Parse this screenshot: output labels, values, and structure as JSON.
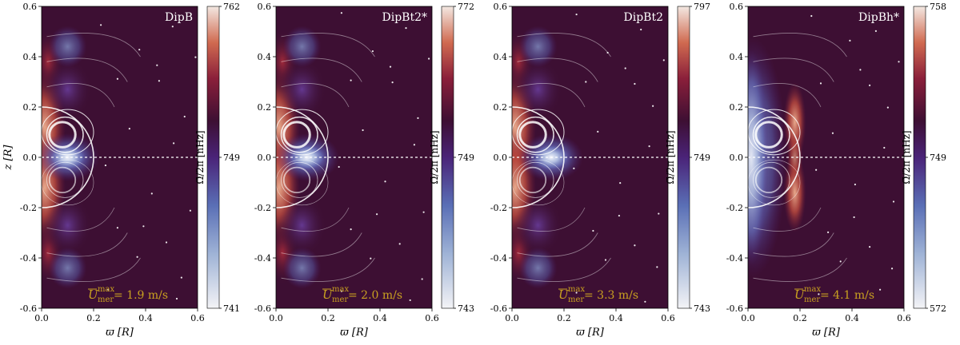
{
  "figure": {
    "description_colors": {
      "background": "#3d0f33",
      "colorbar_low": "#ececf2",
      "colorbar_mid": "#4b237a",
      "colorbar_high": "#f2e6e0",
      "annotation": "#c8a020",
      "streamline": "#ffffff"
    }
  },
  "chart_data": [
    {
      "type": "heatmap",
      "title": "DipB",
      "xlabel": "ϖ [R]",
      "ylabel": "z [R]",
      "xlim": [
        0.0,
        0.6
      ],
      "ylim": [
        -0.6,
        0.6
      ],
      "xticks": [
        "0.0",
        "0.2",
        "0.4",
        "0.6"
      ],
      "yticks": [
        "-0.6",
        "-0.4",
        "-0.2",
        "0.0",
        "0.2",
        "0.4",
        "0.6"
      ],
      "colorbar": {
        "label": "Ω̄/2π [nHz]",
        "min": 741,
        "mid": 749,
        "max": 762,
        "ticks": [
          "762",
          "749",
          "741"
        ]
      },
      "annotation": {
        "symbol": "U",
        "sup": "max",
        "sub": "mer",
        "text": " = 1.9 m/s",
        "value": 1.9,
        "unit": "m/s"
      },
      "features": {
        "hot_blob_x": 0.1,
        "hot_blob_z": 0.0,
        "equator_band": true
      }
    },
    {
      "type": "heatmap",
      "title": "DipBt2*",
      "xlabel": "ϖ [R]",
      "ylabel": "",
      "xlim": [
        0.0,
        0.6
      ],
      "ylim": [
        -0.6,
        0.6
      ],
      "xticks": [
        "0.0",
        "0.2",
        "0.4",
        "0.6"
      ],
      "yticks": [
        "-0.6",
        "-0.4",
        "-0.2",
        "0.0",
        "0.2",
        "0.4",
        "0.6"
      ],
      "colorbar": {
        "label": "Ω̄/2π [nHz]",
        "min": 743,
        "mid": 749,
        "max": 772,
        "ticks": [
          "772",
          "749",
          "743"
        ]
      },
      "annotation": {
        "symbol": "U",
        "sup": "max",
        "sub": "mer",
        "text": " = 2.0 m/s",
        "value": 2.0,
        "unit": "m/s"
      },
      "features": {
        "hot_blob_x": 0.12,
        "hot_blob_z": 0.0,
        "equator_band": true
      }
    },
    {
      "type": "heatmap",
      "title": "DipBt2",
      "xlabel": "ϖ [R]",
      "ylabel": "",
      "xlim": [
        0.0,
        0.6
      ],
      "ylim": [
        -0.6,
        0.6
      ],
      "xticks": [
        "0.0",
        "0.2",
        "0.4",
        "0.6"
      ],
      "yticks": [
        "-0.6",
        "-0.4",
        "-0.2",
        "0.0",
        "0.2",
        "0.4",
        "0.6"
      ],
      "colorbar": {
        "label": "Ω̄/2π [nHz]",
        "min": 743,
        "mid": 749,
        "max": 797,
        "ticks": [
          "797",
          "749",
          "743"
        ]
      },
      "annotation": {
        "symbol": "U",
        "sup": "max",
        "sub": "mer",
        "text": " = 3.3 m/s",
        "value": 3.3,
        "unit": "m/s"
      },
      "features": {
        "hot_blob_x": 0.15,
        "hot_blob_z": 0.0,
        "equator_band": true
      }
    },
    {
      "type": "heatmap",
      "title": "DipBh*",
      "xlabel": "ϖ [R]",
      "ylabel": "",
      "xlim": [
        0.0,
        0.6
      ],
      "ylim": [
        -0.6,
        0.6
      ],
      "xticks": [
        "0.0",
        "0.2",
        "0.4",
        "0.6"
      ],
      "yticks": [
        "-0.6",
        "-0.4",
        "-0.2",
        "0.0",
        "0.2",
        "0.4",
        "0.6"
      ],
      "colorbar": {
        "label": "Ω̄/2π [nHz]",
        "min": 572,
        "mid": 749,
        "max": 758,
        "ticks": [
          "758",
          "749",
          "572"
        ]
      },
      "annotation": {
        "symbol": "U",
        "sup": "max",
        "sub": "mer",
        "text": " = 4.1 m/s",
        "value": 4.1,
        "unit": "m/s"
      },
      "features": {
        "hot_blob_x": 0.18,
        "hot_blob_z": 0.0,
        "equator_band": false,
        "cool_strip": true
      }
    }
  ]
}
